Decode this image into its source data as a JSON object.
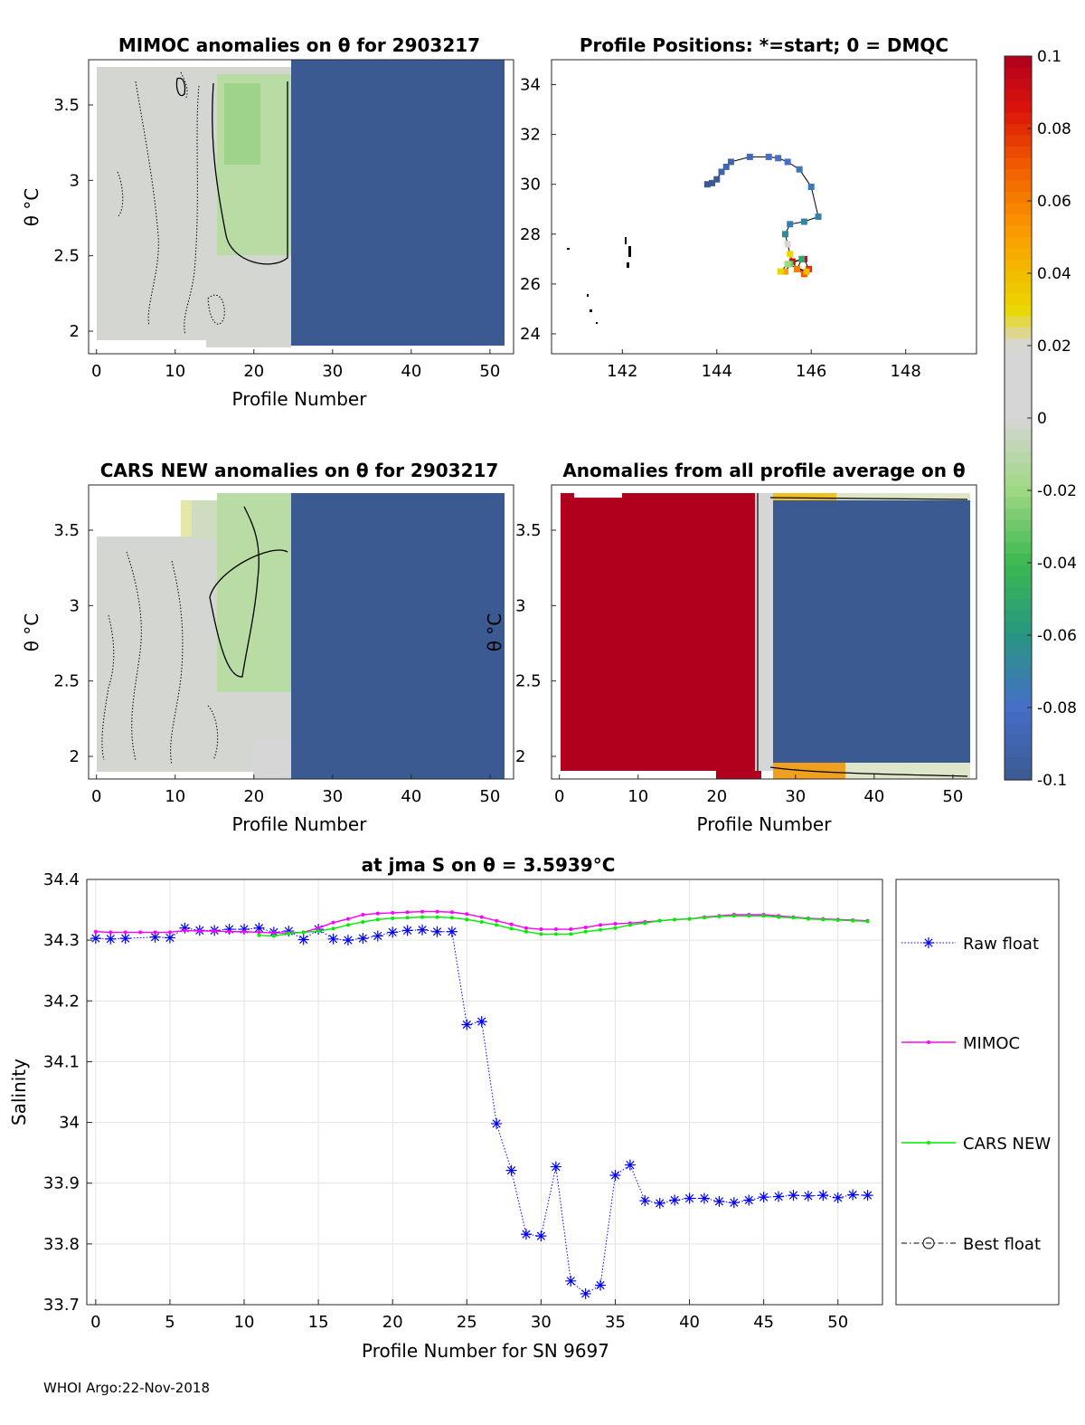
{
  "footer": "WHOI Argo:22-Nov-2018",
  "colors": {
    "negative": "#3c5a92",
    "positive": "#b0001e",
    "neutral": "#d6d6d6",
    "raw": "#0000ff",
    "mimoc": "#ff00ff",
    "cars": "#00ee00"
  },
  "chart_data": [
    {
      "type": "heatmap",
      "title": "MIMOC anomalies on θ  for 2903217",
      "xlabel": "Profile Number",
      "ylabel": "θ °C",
      "xlim": [
        -1,
        53
      ],
      "ylim": [
        1.85,
        3.8
      ],
      "xticks": [
        "0",
        "10",
        "20",
        "30",
        "40",
        "50"
      ],
      "yticks": [
        "2",
        "2.5",
        "3",
        "3.5"
      ],
      "note": "profiles 0-24 near-zero anomaly (slightly negative around 15-24); profiles 25-52 about -0.1"
    },
    {
      "type": "scatter",
      "title": "Profile Positions: *=start; 0 = DMQC",
      "xlim": [
        140.5,
        149.5
      ],
      "ylim": [
        23.2,
        35
      ],
      "xticks": [
        "142",
        "144",
        "146",
        "148"
      ],
      "yticks": [
        "24",
        "26",
        "28",
        "30",
        "32",
        "34"
      ],
      "track_lon": [
        143.8,
        143.9,
        144.0,
        144.1,
        144.2,
        144.3,
        144.7,
        145.1,
        145.3,
        145.5,
        145.75,
        146.0,
        146.15,
        145.85,
        145.55,
        145.45,
        145.5,
        145.55,
        145.6,
        145.7,
        145.85,
        145.95,
        145.85,
        145.6,
        145.45,
        145.55,
        145.8,
        145.7,
        145.9,
        145.5,
        145.35
      ],
      "track_lat": [
        30.0,
        30.05,
        30.2,
        30.5,
        30.7,
        30.9,
        31.1,
        31.1,
        31.05,
        30.9,
        30.6,
        29.9,
        28.7,
        28.5,
        28.4,
        28.0,
        27.6,
        27.2,
        26.9,
        26.6,
        26.4,
        26.6,
        27.0,
        26.9,
        26.5,
        26.8,
        27.0,
        26.6,
        26.5,
        26.8,
        26.5
      ],
      "track_anom": [
        -0.1,
        -0.1,
        -0.1,
        -0.09,
        -0.09,
        -0.09,
        -0.085,
        -0.08,
        -0.08,
        -0.08,
        -0.075,
        -0.075,
        -0.07,
        -0.07,
        -0.072,
        -0.065,
        0.02,
        0.03,
        0.05,
        0.06,
        0.07,
        0.08,
        0.1,
        0.09,
        0.05,
        -0.03,
        -0.05,
        0.06,
        0.04,
        -0.02,
        0.03
      ]
    },
    {
      "type": "heatmap",
      "title": "CARS NEW anomalies on θ for 2903217",
      "xlabel": "Profile Number",
      "ylabel": "θ °C",
      "xlim": [
        -1,
        53
      ],
      "ylim": [
        1.85,
        3.8
      ],
      "xticks": [
        "0",
        "10",
        "20",
        "30",
        "40",
        "50"
      ],
      "yticks": [
        "2",
        "2.5",
        "3",
        "3.5"
      ]
    },
    {
      "type": "heatmap",
      "title": "Anomalies from all profile average on θ",
      "xlabel": "Profile Number",
      "ylabel": "θ °C",
      "xlim": [
        -1,
        53
      ],
      "ylim": [
        1.85,
        3.8
      ],
      "xticks": [
        "0",
        "10",
        "20",
        "30",
        "40",
        "50"
      ],
      "yticks": [
        "2",
        "2.5",
        "3",
        "3.5"
      ],
      "note": "profiles 0-24 about +0.1; profiles 27-52 about -0.1"
    },
    {
      "type": "colorbar",
      "range": [
        -0.1,
        0.1
      ],
      "ticks": [
        "0.1",
        "0.08",
        "0.06",
        "0.04",
        "0.02",
        "0",
        "-0.02",
        "-0.04",
        "-0.06",
        "-0.08",
        "-0.1"
      ]
    },
    {
      "type": "line",
      "title": "at jma S on θ = 3.5939°C",
      "xlabel": "Profile Number for SN 9697",
      "ylabel": "Salinity",
      "xlim": [
        -0.6,
        53
      ],
      "ylim": [
        33.7,
        34.4
      ],
      "xticks": [
        "0",
        "5",
        "10",
        "15",
        "20",
        "25",
        "30",
        "35",
        "40",
        "45",
        "50"
      ],
      "yticks": [
        "33.7",
        "33.8",
        "33.9",
        "34",
        "34.1",
        "34.2",
        "34.3",
        "34.4"
      ],
      "series": [
        {
          "name": "Raw float",
          "x": [
            0,
            1,
            2,
            4,
            5,
            6,
            7,
            8,
            9,
            10,
            11,
            12,
            13,
            14,
            15,
            16,
            17,
            18,
            19,
            20,
            21,
            22,
            23,
            24,
            25,
            26,
            27,
            28,
            29,
            30,
            31,
            32,
            33,
            34,
            35,
            36,
            37,
            38,
            39,
            40,
            41,
            42,
            43,
            44,
            45,
            46,
            47,
            48,
            49,
            50,
            51,
            52
          ],
          "y": [
            34.303,
            34.302,
            34.303,
            34.305,
            34.304,
            34.32,
            34.316,
            34.316,
            34.318,
            34.318,
            34.32,
            34.313,
            34.315,
            34.301,
            34.318,
            34.302,
            34.3,
            34.303,
            34.307,
            34.313,
            34.316,
            34.317,
            34.314,
            34.314,
            34.161,
            34.166,
            33.998,
            33.921,
            33.816,
            33.813,
            33.927,
            33.739,
            33.718,
            33.732,
            33.913,
            33.93,
            33.871,
            33.867,
            33.872,
            33.875,
            33.875,
            33.87,
            33.868,
            33.872,
            33.877,
            33.878,
            33.88,
            33.879,
            33.88,
            33.876,
            33.881,
            33.88
          ]
        },
        {
          "name": "MIMOC",
          "x": [
            0,
            1,
            2,
            3,
            4,
            5,
            6,
            7,
            8,
            9,
            10,
            11,
            12,
            13,
            14,
            15,
            16,
            17,
            18,
            19,
            20,
            21,
            22,
            23,
            24,
            25,
            26,
            27,
            28,
            29,
            30,
            31,
            32,
            33,
            34,
            35,
            36,
            37,
            38,
            39,
            40,
            41,
            42,
            43,
            44,
            45,
            46,
            47,
            48,
            49,
            50,
            51,
            52
          ],
          "y": [
            34.314,
            34.313,
            34.313,
            34.313,
            34.313,
            34.313,
            34.316,
            34.315,
            34.315,
            34.314,
            34.314,
            34.313,
            34.312,
            34.312,
            34.313,
            34.32,
            34.329,
            34.335,
            34.342,
            34.344,
            34.345,
            34.346,
            34.347,
            34.347,
            34.346,
            34.343,
            34.338,
            34.332,
            34.326,
            34.32,
            34.318,
            34.318,
            34.318,
            34.321,
            34.325,
            34.327,
            34.328,
            34.33,
            34.332,
            34.334,
            34.335,
            34.338,
            34.34,
            34.342,
            34.342,
            34.342,
            34.34,
            34.338,
            34.336,
            34.335,
            34.334,
            34.333,
            34.332
          ]
        },
        {
          "name": "CARS NEW",
          "x": [
            11,
            12,
            13,
            14,
            15,
            16,
            17,
            18,
            19,
            20,
            21,
            22,
            23,
            24,
            25,
            26,
            27,
            28,
            29,
            30,
            31,
            32,
            33,
            34,
            35,
            36,
            37,
            38,
            39,
            40,
            41,
            42,
            43,
            44,
            45,
            46,
            47,
            48,
            49,
            50,
            51,
            52
          ],
          "y": [
            34.308,
            34.307,
            34.311,
            34.313,
            34.315,
            34.319,
            34.325,
            34.33,
            34.334,
            34.336,
            34.337,
            34.338,
            34.338,
            34.337,
            34.334,
            34.33,
            34.325,
            34.319,
            34.314,
            34.31,
            34.31,
            34.31,
            34.314,
            34.317,
            34.32,
            34.325,
            34.328,
            34.332,
            34.334,
            34.335,
            34.337,
            34.339,
            34.34,
            34.34,
            34.34,
            34.338,
            34.337,
            34.335,
            34.334,
            34.333,
            34.332,
            34.331
          ]
        },
        {
          "name": "Best float",
          "x": [],
          "y": []
        }
      ]
    }
  ]
}
